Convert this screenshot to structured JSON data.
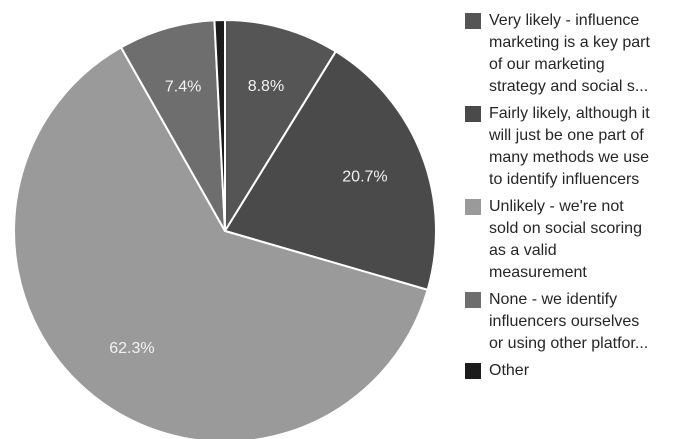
{
  "chart_data": {
    "type": "pie",
    "slices": [
      {
        "label": "Very likely - influence marketing is a key part of our marketing strategy and social s...",
        "value": 8.8,
        "data_label": "8.8%",
        "color": "#555555"
      },
      {
        "label": "Fairly likely, although it will just be one part of many methods we use to identify influencers",
        "value": 20.7,
        "data_label": "20.7%",
        "color": "#4a4a4a"
      },
      {
        "label": "Unlikely - we're not sold on social scoring as a valid measurement",
        "value": 62.3,
        "data_label": "62.3%",
        "color": "#9a9a9a"
      },
      {
        "label": "None - we identify influencers ourselves or using other platfor...",
        "value": 7.4,
        "data_label": "7.4%",
        "color": "#6e6e6e"
      },
      {
        "label": "Other",
        "value": 0.8,
        "data_label": "",
        "color": "#1c1c1c"
      }
    ],
    "legend_position": "right",
    "label_color": "#f2f2f2",
    "edge_color": "#ffffff"
  },
  "legend": {
    "items": [
      {
        "lines": [
          "Very likely - influence",
          "marketing is a key part",
          "of our marketing",
          "strategy and social s..."
        ]
      },
      {
        "lines": [
          "Fairly likely, although it",
          "will just be one part of",
          "many methods we use",
          "to identify influencers"
        ]
      },
      {
        "lines": [
          "Unlikely - we're not",
          "sold on social scoring",
          "as a valid",
          "measurement"
        ]
      },
      {
        "lines": [
          "None - we identify",
          "influencers ourselves",
          "or using other platfor..."
        ]
      },
      {
        "lines": [
          "Other"
        ]
      }
    ]
  }
}
